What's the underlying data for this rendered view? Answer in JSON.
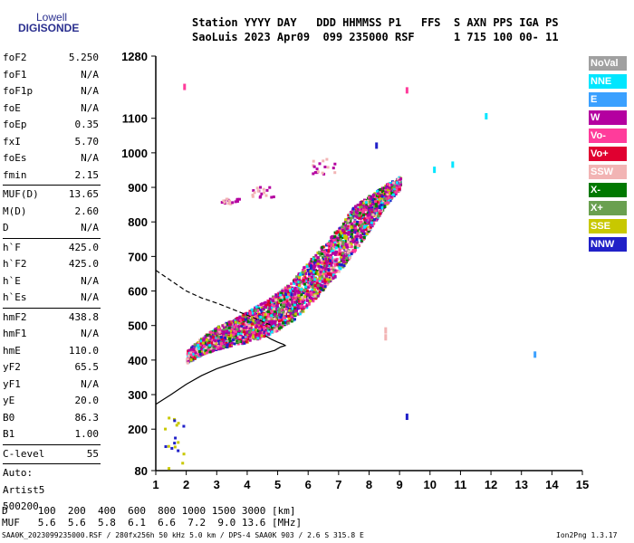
{
  "logo": {
    "line1": "Lowell",
    "line2": "DIGISONDE"
  },
  "header": {
    "line1": "Station YYYY DAY   DDD HHMMSS P1   FFS  S AXN PPS IGA PS",
    "line2": "SaoLuis 2023 Apr09  099 235000 RSF      1 715 100 00- 11"
  },
  "params": {
    "group1": [
      {
        "name": "foF2",
        "value": "5.250"
      },
      {
        "name": "foF1",
        "value": "N/A"
      },
      {
        "name": "foF1p",
        "value": "N/A"
      },
      {
        "name": "foE",
        "value": "N/A"
      },
      {
        "name": "foEp",
        "value": "0.35"
      },
      {
        "name": "fxI",
        "value": "5.70"
      },
      {
        "name": "foEs",
        "value": "N/A"
      },
      {
        "name": "fmin",
        "value": "2.15"
      }
    ],
    "group2": [
      {
        "name": "MUF(D)",
        "value": "13.65"
      },
      {
        "name": "M(D)",
        "value": "2.60"
      },
      {
        "name": "D",
        "value": "N/A"
      }
    ],
    "group3": [
      {
        "name": "h`F",
        "value": "425.0"
      },
      {
        "name": "h`F2",
        "value": "425.0"
      },
      {
        "name": "h`E",
        "value": "N/A"
      },
      {
        "name": "h`Es",
        "value": "N/A"
      }
    ],
    "group4": [
      {
        "name": "hmF2",
        "value": "438.8"
      },
      {
        "name": "hmF1",
        "value": "N/A"
      },
      {
        "name": "hmE",
        "value": "110.0"
      },
      {
        "name": "yF2",
        "value": "65.5"
      },
      {
        "name": "yF1",
        "value": "N/A"
      },
      {
        "name": "yE",
        "value": "20.0"
      },
      {
        "name": "B0",
        "value": "86.3"
      },
      {
        "name": "B1",
        "value": "1.00"
      }
    ],
    "group5": [
      {
        "name": "C-level",
        "value": "55"
      }
    ],
    "auto": [
      "Auto:",
      "Artist5",
      "500200"
    ]
  },
  "legend": [
    {
      "label": "NoVal",
      "color": "#a0a0a0"
    },
    {
      "label": "NNE",
      "color": "#00e6ff"
    },
    {
      "label": "E",
      "color": "#3aa0ff"
    },
    {
      "label": "W",
      "color": "#b400a0"
    },
    {
      "label": "Vo-",
      "color": "#ff3c9b"
    },
    {
      "label": "Vo+",
      "color": "#e00030"
    },
    {
      "label": "SSW",
      "color": "#f2b4b4"
    },
    {
      "label": "X-",
      "color": "#007800"
    },
    {
      "label": "X+",
      "color": "#6aa050"
    },
    {
      "label": "SSE",
      "color": "#c8c800"
    },
    {
      "label": "NNW",
      "color": "#2020c8"
    }
  ],
  "mufTable": {
    "line1": "D     100  200  400  600  800 1000 1500 3000 [km]",
    "line2": "MUF   5.6  5.6  5.8  6.1  6.6  7.2  9.0 13.6 [MHz]"
  },
  "footer": {
    "left": "SAA0K_2023099235000.RSF / 280fx256h 50 kHz 5.0 km / DPS-4 SAA0K 903 / 2.6 S 315.8 E",
    "right": "Ion2Png 1.3.17"
  },
  "chart_data": {
    "type": "scatter",
    "title": "",
    "xlabel": "",
    "ylabel": "",
    "xlim": [
      1,
      15
    ],
    "ylim": [
      80,
      1280
    ],
    "xticks": [
      "1",
      "2",
      "3",
      "4",
      "5",
      "6",
      "7",
      "8",
      "9",
      "10",
      "11",
      "12",
      "13",
      "14",
      "15"
    ],
    "yticks": [
      "80",
      "200",
      "300",
      "400",
      "500",
      "600",
      "700",
      "800",
      "900",
      "1000",
      "1100",
      "1280"
    ],
    "yticks_values": [
      80,
      200,
      300,
      400,
      500,
      600,
      700,
      800,
      900,
      1000,
      1100,
      1280
    ],
    "bottomside_profile": [
      [
        1.0,
        272
      ],
      [
        1.5,
        300
      ],
      [
        2.0,
        330
      ],
      [
        2.5,
        355
      ],
      [
        3.0,
        375
      ],
      [
        3.5,
        390
      ],
      [
        4.0,
        405
      ],
      [
        4.5,
        418
      ],
      [
        4.9,
        428
      ],
      [
        5.1,
        438
      ],
      [
        5.25,
        442
      ],
      [
        5.2,
        445
      ],
      [
        5.0,
        452
      ],
      [
        4.8,
        460
      ],
      [
        4.6,
        470
      ]
    ],
    "topside_profile": [
      [
        1.0,
        660
      ],
      [
        1.5,
        630
      ],
      [
        2.0,
        600
      ],
      [
        2.5,
        580
      ],
      [
        3.0,
        565
      ],
      [
        3.5,
        548
      ],
      [
        4.0,
        530
      ],
      [
        4.5,
        512
      ],
      [
        4.8,
        500
      ]
    ],
    "echo_trace_band": [
      [
        2.0,
        395,
        430
      ],
      [
        2.5,
        420,
        470
      ],
      [
        3.0,
        435,
        500
      ],
      [
        3.5,
        445,
        520
      ],
      [
        4.0,
        455,
        545
      ],
      [
        4.5,
        470,
        570
      ],
      [
        5.0,
        490,
        600
      ],
      [
        5.5,
        520,
        640
      ],
      [
        6.0,
        560,
        690
      ],
      [
        6.5,
        610,
        740
      ],
      [
        7.0,
        660,
        790
      ],
      [
        7.5,
        720,
        850
      ],
      [
        8.0,
        780,
        880
      ],
      [
        8.5,
        850,
        910
      ],
      [
        9.0,
        900,
        935
      ]
    ],
    "echo_clusters": [
      {
        "x": 3.5,
        "y_min": 855,
        "y_max": 870
      },
      {
        "x": 4.5,
        "y_min": 875,
        "y_max": 905
      },
      {
        "x": 6.5,
        "y_min": 940,
        "y_max": 990
      },
      {
        "x": 1.5,
        "y_min": 90,
        "y_max": 250
      }
    ],
    "isolated_echoes": [
      {
        "x": 1.9,
        "y": 1200,
        "color": "#ff3c9b"
      },
      {
        "x": 8.2,
        "y": 1030,
        "color": "#2020c8"
      },
      {
        "x": 9.2,
        "y": 1190,
        "color": "#ff3c9b"
      },
      {
        "x": 10.1,
        "y": 960,
        "color": "#00e6ff"
      },
      {
        "x": 10.7,
        "y": 975,
        "color": "#00e6ff"
      },
      {
        "x": 11.8,
        "y": 1115,
        "color": "#00e6ff"
      },
      {
        "x": 13.4,
        "y": 425,
        "color": "#3aa0ff"
      },
      {
        "x": 9.2,
        "y": 245,
        "color": "#2020c8"
      },
      {
        "x": 8.5,
        "y": 495,
        "color": "#f2b4b4"
      },
      {
        "x": 8.5,
        "y": 475,
        "color": "#f2b4b4"
      }
    ]
  }
}
